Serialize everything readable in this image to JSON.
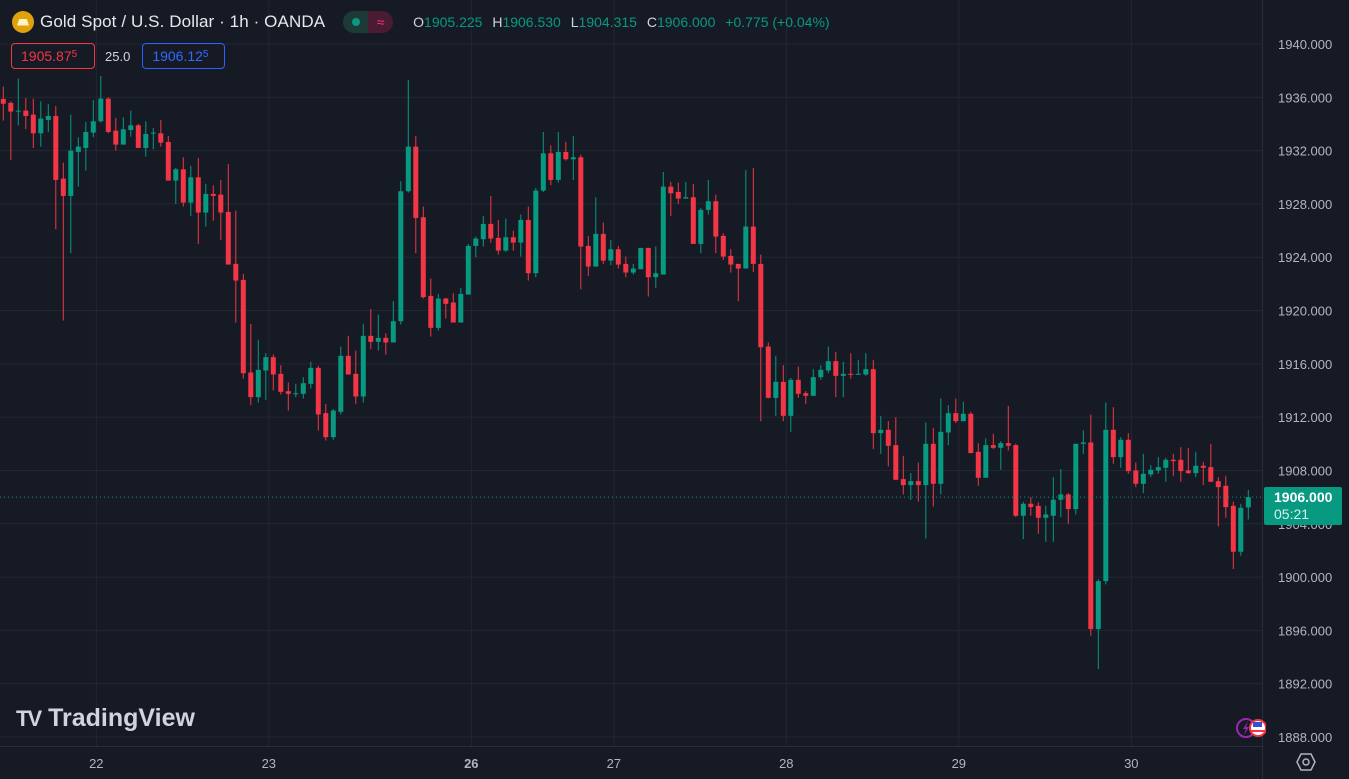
{
  "header": {
    "symbol_title": "Gold Spot / U.S. Dollar · 1h · OANDA",
    "toggle_right_glyph": "≈",
    "ohlc": {
      "o_label": "O",
      "o": "1905.225",
      "h_label": "H",
      "h": "1906.530",
      "l_label": "L",
      "l": "1904.315",
      "c_label": "C",
      "c": "1906.000",
      "change": "+0.775 (+0.04%)"
    }
  },
  "trade": {
    "bid_main": "1905.87",
    "bid_sup": "5",
    "spread": "25.0",
    "ask_main": "1906.12",
    "ask_sup": "5"
  },
  "last_price": {
    "price": "1906.000",
    "countdown": "05:21"
  },
  "watermark": "TradingView",
  "colors": {
    "up": "#089981",
    "down": "#f23645",
    "background": "#161a25",
    "grid": "#232733",
    "bid": "#f23645",
    "ask": "#2962ff",
    "gold": "#e0a20c"
  },
  "icons": [
    "gold-coin-icon",
    "market-status-dot-icon",
    "approx-icon",
    "lightning-badge-icon",
    "us-flag-icon",
    "settings-hexagon-icon"
  ],
  "chart_data": {
    "type": "candlestick",
    "title": "Gold Spot / U.S. Dollar · 1h · OANDA",
    "ylim": [
      1888,
      1940
    ],
    "y_ticks": [
      "1940.000",
      "1936.000",
      "1932.000",
      "1928.000",
      "1924.000",
      "1920.000",
      "1916.000",
      "1912.000",
      "1908.000",
      "1904.000",
      "1900.000",
      "1896.000",
      "1892.000",
      "1888.000"
    ],
    "x_ticks": [
      {
        "label": "22",
        "index": 12,
        "bold": false
      },
      {
        "label": "23",
        "index": 35,
        "bold": false
      },
      {
        "label": "26",
        "index": 62,
        "bold": true
      },
      {
        "label": "27",
        "index": 81,
        "bold": false
      },
      {
        "label": "28",
        "index": 104,
        "bold": false
      },
      {
        "label": "29",
        "index": 127,
        "bold": false
      },
      {
        "label": "30",
        "index": 150,
        "bold": false
      }
    ],
    "last_price": 1906.0,
    "grid": true,
    "ohlc_fields": [
      "open",
      "high",
      "low",
      "close"
    ],
    "candles": [
      [
        1935.88,
        1936.8,
        1934.25,
        1935.52
      ],
      [
        1935.58,
        1935.7,
        1931.3,
        1934.93
      ],
      [
        1934.95,
        1937.4,
        1933.9,
        1935.0
      ],
      [
        1935.0,
        1935.95,
        1933.6,
        1934.6
      ],
      [
        1934.7,
        1935.9,
        1932.2,
        1933.3
      ],
      [
        1933.3,
        1935.7,
        1932.3,
        1934.4
      ],
      [
        1934.3,
        1935.5,
        1933.4,
        1934.6
      ],
      [
        1934.6,
        1935.35,
        1926.1,
        1929.8
      ],
      [
        1929.9,
        1931.1,
        1919.25,
        1928.6
      ],
      [
        1928.6,
        1934.7,
        1924.3,
        1932.0
      ],
      [
        1931.9,
        1933.0,
        1929.3,
        1932.3
      ],
      [
        1932.2,
        1934.15,
        1930.5,
        1933.4
      ],
      [
        1933.35,
        1935.8,
        1933.0,
        1934.2
      ],
      [
        1934.2,
        1937.6,
        1934.1,
        1935.9
      ],
      [
        1935.9,
        1936.0,
        1933.3,
        1933.4
      ],
      [
        1933.5,
        1934.45,
        1932.0,
        1932.45
      ],
      [
        1932.45,
        1934.5,
        1932.45,
        1933.6
      ],
      [
        1933.55,
        1935.0,
        1933.05,
        1933.9
      ],
      [
        1933.9,
        1934.0,
        1932.2,
        1932.2
      ],
      [
        1932.2,
        1934.2,
        1931.55,
        1933.25
      ],
      [
        1933.3,
        1933.7,
        1932.1,
        1933.35
      ],
      [
        1933.3,
        1934.3,
        1932.3,
        1932.6
      ],
      [
        1932.65,
        1933.1,
        1929.75,
        1929.75
      ],
      [
        1929.75,
        1930.7,
        1928.0,
        1930.6
      ],
      [
        1930.6,
        1931.5,
        1927.8,
        1928.1
      ],
      [
        1928.1,
        1930.85,
        1927.1,
        1930.0
      ],
      [
        1930.0,
        1931.45,
        1925.0,
        1927.35
      ],
      [
        1927.35,
        1929.5,
        1926.3,
        1928.75
      ],
      [
        1928.75,
        1929.4,
        1926.75,
        1928.6
      ],
      [
        1928.7,
        1929.8,
        1925.3,
        1927.35
      ],
      [
        1927.4,
        1931.0,
        1923.45,
        1923.45
      ],
      [
        1923.5,
        1927.5,
        1919.1,
        1922.25
      ],
      [
        1922.3,
        1922.75,
        1914.9,
        1915.3
      ],
      [
        1915.35,
        1919.0,
        1912.9,
        1913.5
      ],
      [
        1913.5,
        1917.8,
        1913.1,
        1915.55
      ],
      [
        1915.5,
        1916.8,
        1913.3,
        1916.5
      ],
      [
        1916.5,
        1916.7,
        1914.0,
        1915.2
      ],
      [
        1915.25,
        1915.9,
        1913.7,
        1913.9
      ],
      [
        1913.95,
        1914.6,
        1912.5,
        1913.75
      ],
      [
        1913.8,
        1914.5,
        1913.5,
        1913.8
      ],
      [
        1913.75,
        1915.0,
        1913.4,
        1914.55
      ],
      [
        1914.5,
        1916.15,
        1914.15,
        1915.7
      ],
      [
        1915.7,
        1915.85,
        1911.0,
        1912.2
      ],
      [
        1912.3,
        1913.0,
        1910.25,
        1910.5
      ],
      [
        1910.5,
        1912.6,
        1910.3,
        1912.5
      ],
      [
        1912.4,
        1917.3,
        1912.2,
        1916.6
      ],
      [
        1916.6,
        1918.1,
        1915.2,
        1915.2
      ],
      [
        1915.25,
        1917.0,
        1913.0,
        1913.55
      ],
      [
        1913.55,
        1919.0,
        1913.1,
        1918.1
      ],
      [
        1918.1,
        1920.1,
        1917.1,
        1917.65
      ],
      [
        1917.65,
        1919.7,
        1917.0,
        1917.95
      ],
      [
        1917.95,
        1918.3,
        1916.7,
        1917.6
      ],
      [
        1917.6,
        1920.7,
        1917.6,
        1919.2
      ],
      [
        1919.2,
        1929.7,
        1918.95,
        1928.95
      ],
      [
        1928.95,
        1937.3,
        1928.85,
        1932.3
      ],
      [
        1932.3,
        1933.1,
        1924.3,
        1926.95
      ],
      [
        1927.0,
        1927.8,
        1920.9,
        1921.0
      ],
      [
        1921.1,
        1922.4,
        1918.05,
        1918.7
      ],
      [
        1918.7,
        1921.25,
        1918.5,
        1920.9
      ],
      [
        1920.9,
        1920.95,
        1919.4,
        1920.5
      ],
      [
        1920.6,
        1921.3,
        1919.1,
        1919.1
      ],
      [
        1919.1,
        1921.7,
        1919.1,
        1921.25
      ],
      [
        1921.2,
        1925.0,
        1921.2,
        1924.85
      ],
      [
        1924.85,
        1925.55,
        1924.0,
        1925.4
      ],
      [
        1925.35,
        1927.1,
        1924.8,
        1926.5
      ],
      [
        1926.5,
        1928.6,
        1925.1,
        1925.4
      ],
      [
        1925.45,
        1926.8,
        1924.2,
        1924.5
      ],
      [
        1924.5,
        1926.9,
        1924.4,
        1925.5
      ],
      [
        1925.5,
        1926.0,
        1924.5,
        1925.1
      ],
      [
        1925.1,
        1927.2,
        1924.05,
        1926.8
      ],
      [
        1926.8,
        1927.8,
        1922.25,
        1922.8
      ],
      [
        1922.8,
        1929.2,
        1922.5,
        1929.0
      ],
      [
        1929.0,
        1933.4,
        1928.9,
        1931.8
      ],
      [
        1931.8,
        1932.4,
        1929.4,
        1929.8
      ],
      [
        1929.8,
        1933.4,
        1929.6,
        1931.9
      ],
      [
        1931.9,
        1932.65,
        1931.25,
        1931.35
      ],
      [
        1931.35,
        1933.1,
        1929.8,
        1931.5
      ],
      [
        1931.5,
        1931.7,
        1921.6,
        1924.8
      ],
      [
        1924.85,
        1925.6,
        1922.6,
        1923.3
      ],
      [
        1923.3,
        1928.5,
        1923.3,
        1925.75
      ],
      [
        1925.75,
        1926.6,
        1923.5,
        1923.75
      ],
      [
        1923.75,
        1925.3,
        1923.4,
        1924.6
      ],
      [
        1924.6,
        1924.85,
        1923.15,
        1923.45
      ],
      [
        1923.5,
        1924.05,
        1922.5,
        1922.85
      ],
      [
        1922.85,
        1923.5,
        1922.7,
        1923.15
      ],
      [
        1923.1,
        1924.7,
        1923.1,
        1924.7
      ],
      [
        1924.7,
        1924.7,
        1921.05,
        1922.5
      ],
      [
        1922.5,
        1924.8,
        1921.7,
        1922.8
      ],
      [
        1922.7,
        1930.4,
        1922.7,
        1929.3
      ],
      [
        1929.3,
        1929.65,
        1927.1,
        1928.8
      ],
      [
        1928.9,
        1929.6,
        1928.0,
        1928.4
      ],
      [
        1928.4,
        1929.65,
        1928.4,
        1928.5
      ],
      [
        1928.5,
        1929.5,
        1925.0,
        1925.0
      ],
      [
        1925.0,
        1927.7,
        1924.3,
        1927.55
      ],
      [
        1927.55,
        1929.8,
        1927.2,
        1928.2
      ],
      [
        1928.2,
        1928.7,
        1924.3,
        1925.55
      ],
      [
        1925.6,
        1925.8,
        1923.8,
        1924.05
      ],
      [
        1924.1,
        1924.6,
        1922.85,
        1923.45
      ],
      [
        1923.5,
        1923.5,
        1920.7,
        1923.15
      ],
      [
        1923.15,
        1930.55,
        1923.15,
        1926.3
      ],
      [
        1926.3,
        1930.7,
        1922.9,
        1923.5
      ],
      [
        1923.5,
        1924.2,
        1911.7,
        1917.25
      ],
      [
        1917.3,
        1917.6,
        1913.4,
        1913.45
      ],
      [
        1913.45,
        1916.6,
        1912.1,
        1914.65
      ],
      [
        1914.65,
        1915.9,
        1911.7,
        1912.1
      ],
      [
        1912.1,
        1914.95,
        1910.9,
        1914.8
      ],
      [
        1914.8,
        1915.8,
        1913.45,
        1913.75
      ],
      [
        1913.8,
        1913.95,
        1913.0,
        1913.6
      ],
      [
        1913.6,
        1915.6,
        1913.6,
        1915.0
      ],
      [
        1915.0,
        1915.9,
        1914.8,
        1915.55
      ],
      [
        1915.5,
        1917.3,
        1915.3,
        1916.2
      ],
      [
        1916.2,
        1916.9,
        1913.5,
        1915.1
      ],
      [
        1915.1,
        1916.15,
        1913.5,
        1915.25
      ],
      [
        1915.25,
        1916.8,
        1914.9,
        1915.2
      ],
      [
        1915.2,
        1916.3,
        1915.2,
        1915.25
      ],
      [
        1915.2,
        1916.8,
        1915.1,
        1915.6
      ],
      [
        1915.6,
        1916.3,
        1909.6,
        1910.8
      ],
      [
        1910.8,
        1912.1,
        1909.25,
        1911.05
      ],
      [
        1911.05,
        1911.7,
        1908.3,
        1909.85
      ],
      [
        1909.9,
        1912.0,
        1907.3,
        1907.3
      ],
      [
        1907.35,
        1909.1,
        1906.2,
        1906.9
      ],
      [
        1906.9,
        1907.8,
        1905.8,
        1907.2
      ],
      [
        1907.2,
        1908.6,
        1905.65,
        1906.9
      ],
      [
        1906.9,
        1911.6,
        1902.9,
        1910.0
      ],
      [
        1910.0,
        1911.2,
        1905.3,
        1907.0
      ],
      [
        1907.0,
        1913.4,
        1906.2,
        1910.9
      ],
      [
        1910.85,
        1912.9,
        1909.9,
        1912.3
      ],
      [
        1912.3,
        1913.4,
        1911.55,
        1911.7
      ],
      [
        1911.7,
        1913.15,
        1911.7,
        1912.25
      ],
      [
        1912.25,
        1912.4,
        1909.3,
        1909.3
      ],
      [
        1909.4,
        1910.05,
        1906.85,
        1907.45
      ],
      [
        1907.45,
        1910.4,
        1907.45,
        1909.9
      ],
      [
        1909.9,
        1910.75,
        1909.6,
        1909.7
      ],
      [
        1909.7,
        1910.2,
        1908.05,
        1910.05
      ],
      [
        1910.05,
        1912.85,
        1909.5,
        1909.85
      ],
      [
        1909.9,
        1910.0,
        1904.5,
        1904.6
      ],
      [
        1904.6,
        1905.65,
        1902.85,
        1905.5
      ],
      [
        1905.5,
        1906.0,
        1904.6,
        1905.25
      ],
      [
        1905.35,
        1905.6,
        1903.25,
        1904.45
      ],
      [
        1904.45,
        1905.35,
        1902.65,
        1904.7
      ],
      [
        1904.6,
        1907.5,
        1902.65,
        1905.8
      ],
      [
        1905.8,
        1908.1,
        1904.5,
        1906.2
      ],
      [
        1906.2,
        1906.3,
        1904.0,
        1905.1
      ],
      [
        1905.1,
        1910.0,
        1904.7,
        1910.0
      ],
      [
        1910.0,
        1911.0,
        1909.25,
        1910.1
      ],
      [
        1910.1,
        1912.2,
        1895.6,
        1896.1
      ],
      [
        1896.1,
        1899.85,
        1893.1,
        1899.7
      ],
      [
        1899.7,
        1913.1,
        1899.45,
        1911.05
      ],
      [
        1911.05,
        1912.75,
        1908.5,
        1909.0
      ],
      [
        1909.0,
        1910.5,
        1908.2,
        1910.3
      ],
      [
        1910.3,
        1910.8,
        1907.75,
        1907.95
      ],
      [
        1908.0,
        1908.6,
        1906.75,
        1907.0
      ],
      [
        1907.0,
        1909.25,
        1906.3,
        1907.75
      ],
      [
        1907.7,
        1908.4,
        1907.5,
        1908.05
      ],
      [
        1908.0,
        1909.0,
        1907.75,
        1908.25
      ],
      [
        1908.2,
        1908.95,
        1907.15,
        1908.8
      ],
      [
        1908.8,
        1909.25,
        1907.6,
        1908.7
      ],
      [
        1908.8,
        1909.75,
        1907.15,
        1907.95
      ],
      [
        1908.0,
        1909.7,
        1907.75,
        1907.8
      ],
      [
        1907.8,
        1909.4,
        1907.5,
        1908.35
      ],
      [
        1908.35,
        1908.65,
        1906.9,
        1908.2
      ],
      [
        1908.25,
        1910.0,
        1907.15,
        1907.15
      ],
      [
        1907.2,
        1907.5,
        1903.8,
        1906.75
      ],
      [
        1906.85,
        1907.6,
        1904.45,
        1905.25
      ],
      [
        1905.35,
        1905.65,
        1900.6,
        1901.9
      ],
      [
        1901.9,
        1905.5,
        1901.6,
        1905.2
      ],
      [
        1905.225,
        1906.53,
        1904.315,
        1906.0
      ]
    ]
  }
}
